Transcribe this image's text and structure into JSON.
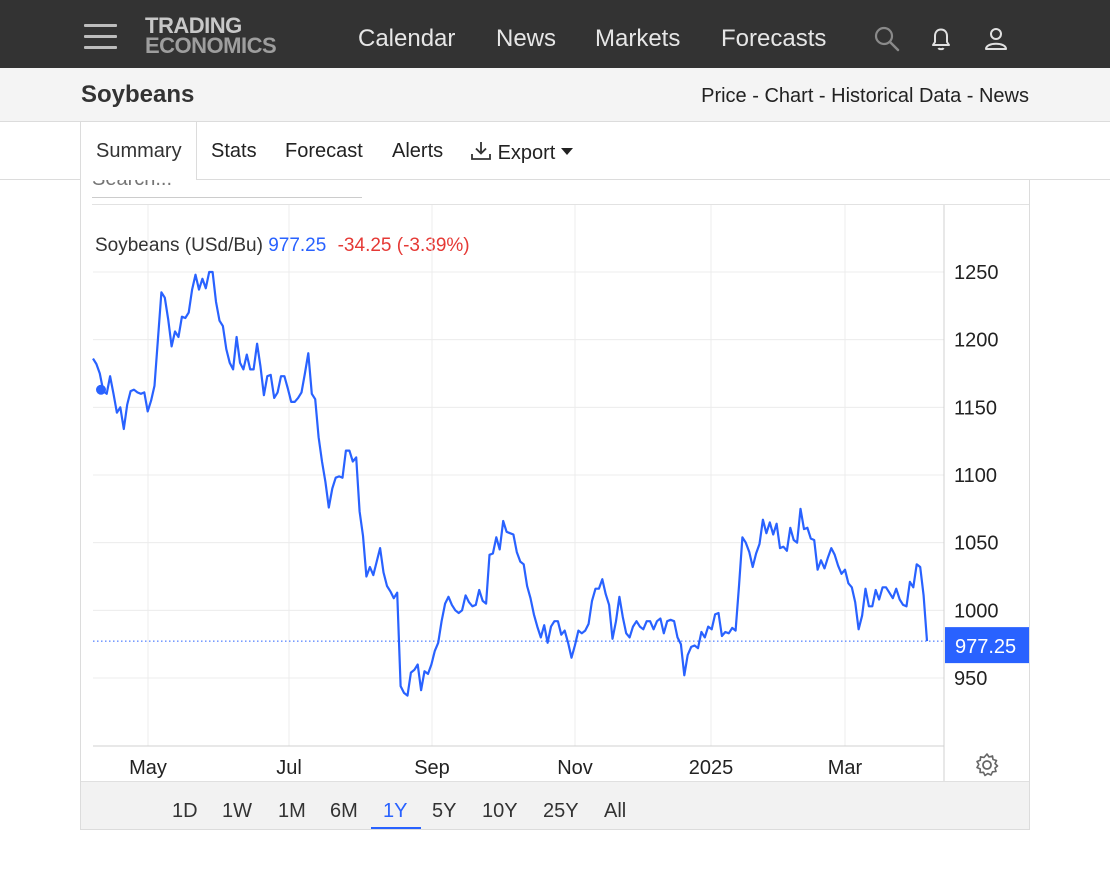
{
  "header": {
    "logo_line1": "TRADING",
    "logo_line2": "ECONOMICS",
    "nav": [
      "Calendar",
      "News",
      "Markets",
      "Forecasts"
    ],
    "icons": [
      "search-icon",
      "bell-icon",
      "user-icon"
    ]
  },
  "subheader": {
    "title": "Soybeans",
    "links": [
      "Price",
      "Chart",
      "Historical Data",
      "News"
    ],
    "separator": " - "
  },
  "tabs": {
    "summary": "Summary",
    "stats": "Stats",
    "forecast": "Forecast",
    "alerts": "Alerts",
    "export": "Export"
  },
  "chart_toolbar": {
    "search_placeholder": "Search..."
  },
  "legend": {
    "name": "Soybeans (USd/Bu)",
    "price": "977.25",
    "change": "-34.25 (-3.39%)"
  },
  "ranges": {
    "items": [
      "1D",
      "1W",
      "1M",
      "6M",
      "1Y",
      "5Y",
      "10Y",
      "25Y",
      "All"
    ],
    "active": "1Y"
  },
  "colors": {
    "line": "#2962ff",
    "negative": "#e53935",
    "header_bg": "#333333"
  },
  "chart_data": {
    "type": "line",
    "title": "Soybeans (USd/Bu)",
    "xlabel": "",
    "ylabel": "",
    "x_ticks": [
      "May",
      "Jul",
      "Sep",
      "Nov",
      "2025",
      "Mar"
    ],
    "y_ticks": [
      950,
      1000,
      1050,
      1100,
      1150,
      1200,
      1250
    ],
    "ylim": [
      900,
      1270
    ],
    "y_axis_side": "right",
    "last_value": 977.25,
    "last_value_label": "977.25",
    "grid": true,
    "series": [
      {
        "values": [
          1186,
          1182,
          1175,
          1162,
          1160,
          1173,
          1160,
          1146,
          1150,
          1134,
          1152,
          1162,
          1163,
          1161,
          1160,
          1161,
          1147,
          1155,
          1166,
          1200,
          1235,
          1231,
          1215,
          1195,
          1206,
          1202,
          1217,
          1216,
          1220,
          1237,
          1248,
          1237,
          1245,
          1238,
          1250,
          1250,
          1228,
          1214,
          1210,
          1193,
          1183,
          1178,
          1202,
          1183,
          1178,
          1189,
          1178,
          1178,
          1197,
          1180,
          1159,
          1173,
          1174,
          1157,
          1161,
          1173,
          1173,
          1164,
          1154,
          1154,
          1157,
          1161,
          1175,
          1190,
          1160,
          1156,
          1128,
          1110,
          1095,
          1076,
          1090,
          1098,
          1099,
          1098,
          1118,
          1118,
          1110,
          1113,
          1073,
          1055,
          1025,
          1032,
          1026,
          1036,
          1046,
          1028,
          1018,
          1014,
          1009,
          1013,
          944,
          939,
          937,
          954,
          956,
          960,
          941,
          955,
          953,
          960,
          970,
          976,
          992,
          1005,
          1010,
          1004,
          1000,
          998,
          1000,
          1011,
          1006,
          1003,
          1004,
          1015,
          1007,
          1005,
          1041,
          1042,
          1054,
          1045,
          1066,
          1058,
          1057,
          1056,
          1043,
          1036,
          1034,
          1018,
          1009,
          997,
          988,
          980,
          989,
          976,
          988,
          992,
          992,
          982,
          985,
          976,
          965,
          974,
          985,
          983,
          985,
          990,
          1007,
          1016,
          1016,
          1023,
          1012,
          1004,
          979,
          992,
          1010,
          995,
          983,
          980,
          988,
          992,
          988,
          986,
          992,
          992,
          986,
          992,
          994,
          983,
          992,
          993,
          992,
          980,
          975,
          952,
          967,
          973,
          974,
          972,
          984,
          980,
          988,
          986,
          997,
          998,
          981,
          984,
          983,
          987,
          985,
          1018,
          1054,
          1050,
          1043,
          1032,
          1042,
          1049,
          1067,
          1057,
          1065,
          1056,
          1064,
          1046,
          1047,
          1044,
          1061,
          1052,
          1050,
          1075,
          1060,
          1061,
          1053,
          1052,
          1030,
          1037,
          1031,
          1039,
          1046,
          1041,
          1033,
          1027,
          1030,
          1020,
          1017,
          1006,
          986,
          996,
          1016,
          1003,
          1003,
          1015,
          1008,
          1017,
          1017,
          1013,
          1009,
          1016,
          1008,
          1004,
          1003,
          1021,
          1017,
          1034,
          1032,
          1011,
          977.25
        ]
      }
    ]
  }
}
